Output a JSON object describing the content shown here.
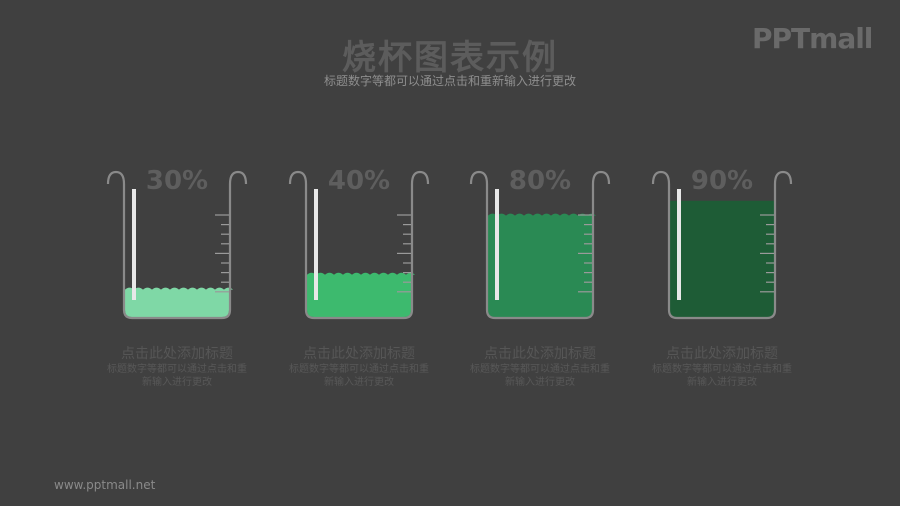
{
  "header": {
    "title": "烧杯图表示例",
    "subtitle": "标题数字等都可以通过点击和重新输入进行更改",
    "logo": "PPTmall"
  },
  "beakers": [
    {
      "percent": "30%",
      "value": 30,
      "color": "#7fd8a6",
      "label": "点击此处添加标题",
      "desc": "标题数字等都可以通过点击和重新输入进行更改"
    },
    {
      "percent": "40%",
      "value": 40,
      "color": "#3dba6e",
      "label": "点击此处添加标题",
      "desc": "标题数字等都可以通过点击和重新输入进行更改"
    },
    {
      "percent": "80%",
      "value": 80,
      "color": "#2a8a54",
      "label": "点击此处添加标题",
      "desc": "标题数字等都可以通过点击和重新输入进行更改"
    },
    {
      "percent": "90%",
      "value": 90,
      "color": "#1e5c36",
      "label": "点击此处添加标题",
      "desc": "标题数字等都可以通过点击和重新输入进行更改"
    }
  ],
  "footer": {
    "url": "www.pptmall.net"
  }
}
